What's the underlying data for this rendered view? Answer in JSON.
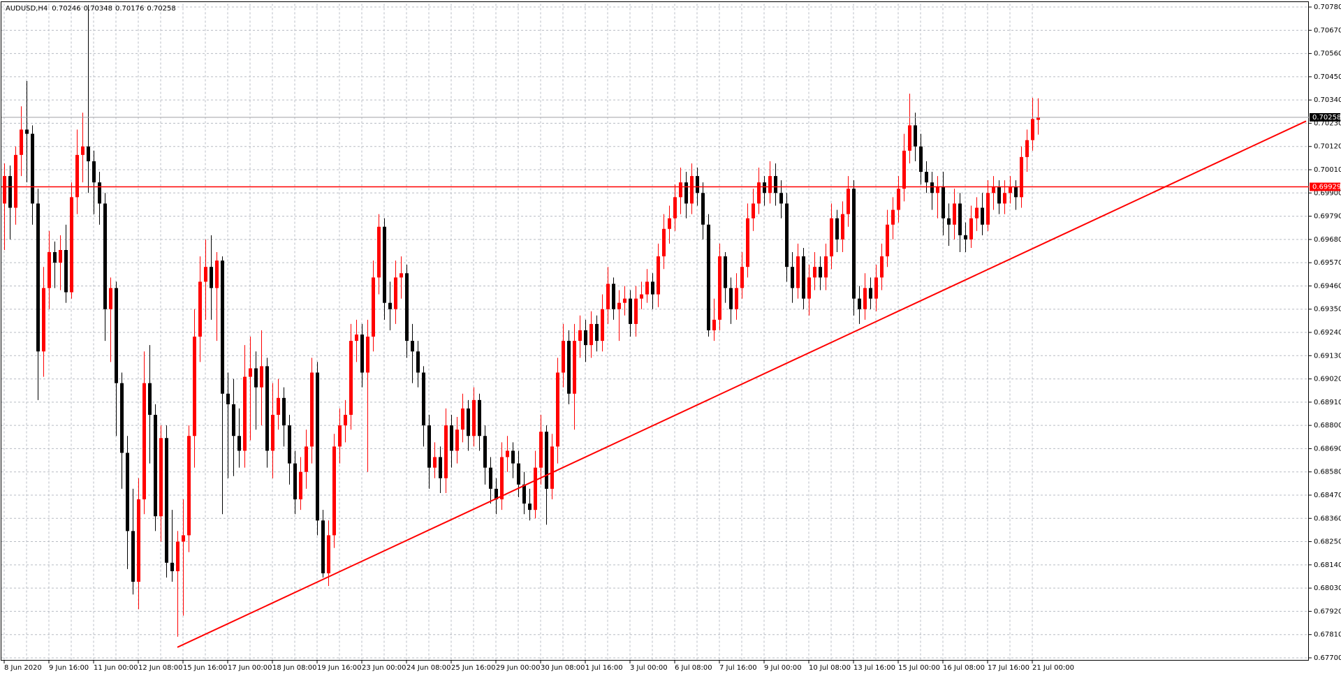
{
  "chart_data": {
    "type": "candlestick",
    "title": "AUDUSD,H4",
    "up_color": "#ff0000",
    "down_color": "#000000",
    "grid": true,
    "ylim": [
      0.6769,
      0.70795
    ],
    "yticks": [
      {
        "value": 0.677,
        "label": "0.67700"
      },
      {
        "value": 0.6781,
        "label": "0.67810"
      },
      {
        "value": 0.6792,
        "label": "0.67920"
      },
      {
        "value": 0.6803,
        "label": "0.68030"
      },
      {
        "value": 0.6814,
        "label": "0.68140"
      },
      {
        "value": 0.6825,
        "label": "0.68250"
      },
      {
        "value": 0.6836,
        "label": "0.68360"
      },
      {
        "value": 0.6847,
        "label": "0.68470"
      },
      {
        "value": 0.6858,
        "label": "0.68580"
      },
      {
        "value": 0.6869,
        "label": "0.68690"
      },
      {
        "value": 0.688,
        "label": "0.68800"
      },
      {
        "value": 0.6891,
        "label": "0.68910"
      },
      {
        "value": 0.6902,
        "label": "0.69020"
      },
      {
        "value": 0.6913,
        "label": "0.69130"
      },
      {
        "value": 0.6924,
        "label": "0.69240"
      },
      {
        "value": 0.6935,
        "label": "0.69350"
      },
      {
        "value": 0.6946,
        "label": "0.69460"
      },
      {
        "value": 0.6957,
        "label": "0.69570"
      },
      {
        "value": 0.6968,
        "label": "0.69680"
      },
      {
        "value": 0.6979,
        "label": "0.69790"
      },
      {
        "value": 0.699,
        "label": "0.69900"
      },
      {
        "value": 0.7001,
        "label": "0.70010"
      },
      {
        "value": 0.7012,
        "label": "0.70120"
      },
      {
        "value": 0.7023,
        "label": "0.70230"
      },
      {
        "value": 0.7034,
        "label": "0.70340"
      },
      {
        "value": 0.7045,
        "label": "0.70450"
      },
      {
        "value": 0.7056,
        "label": "0.70560"
      },
      {
        "value": 0.7067,
        "label": "0.70670"
      },
      {
        "value": 0.7078,
        "label": "0.70780"
      }
    ],
    "categories": [
      "8 Jun 2020",
      null,
      null,
      null,
      null,
      null,
      null,
      null,
      "9 Jun 16:00",
      null,
      null,
      null,
      null,
      null,
      null,
      null,
      "11 Jun 00:00",
      null,
      null,
      null,
      null,
      null,
      null,
      null,
      "12 Jun 08:00",
      null,
      null,
      null,
      null,
      null,
      null,
      null,
      "15 Jun 16:00",
      null,
      null,
      null,
      null,
      null,
      null,
      null,
      "17 Jun 00:00",
      null,
      null,
      null,
      null,
      null,
      null,
      null,
      "18 Jun 08:00",
      null,
      null,
      null,
      null,
      null,
      null,
      null,
      "19 Jun 16:00",
      null,
      null,
      null,
      null,
      null,
      null,
      null,
      "23 Jun 00:00",
      null,
      null,
      null,
      null,
      null,
      null,
      null,
      "24 Jun 08:00",
      null,
      null,
      null,
      null,
      null,
      null,
      null,
      "25 Jun 16:00",
      null,
      null,
      null,
      null,
      null,
      null,
      null,
      "29 Jun 00:00",
      null,
      null,
      null,
      null,
      null,
      null,
      null,
      "30 Jun 08:00",
      null,
      null,
      null,
      null,
      null,
      null,
      null,
      "1 Jul 16:00",
      null,
      null,
      null,
      null,
      null,
      null,
      null,
      "3 Jul 00:00",
      null,
      null,
      null,
      null,
      null,
      null,
      null,
      "6 Jul 08:00",
      null,
      null,
      null,
      null,
      null,
      null,
      null,
      "7 Jul 16:00",
      null,
      null,
      null,
      null,
      null,
      null,
      null,
      "9 Jul 00:00",
      null,
      null,
      null,
      null,
      null,
      null,
      null,
      "10 Jul 08:00",
      null,
      null,
      null,
      null,
      null,
      null,
      null,
      "13 Jul 16:00",
      null,
      null,
      null,
      null,
      null,
      null,
      null,
      "15 Jul 00:00",
      null,
      null,
      null,
      null,
      null,
      null,
      null,
      "16 Jul 08:00",
      null,
      null,
      null,
      null,
      null,
      null,
      null,
      "17 Jul 16:00",
      null,
      null,
      null,
      null,
      null,
      null,
      null,
      "21 Jul 00:00",
      null
    ],
    "open": [
      0.6985,
      0.6998,
      0.6983,
      0.7008,
      0.702,
      0.7018,
      0.6985,
      0.6915,
      0.6945,
      0.6962,
      0.6957,
      0.6963,
      0.6943,
      0.6988,
      0.7008,
      0.7012,
      0.7005,
      0.6995,
      0.6985,
      0.6935,
      0.6945,
      0.69,
      0.6867,
      0.683,
      0.6806,
      0.6845,
      0.69,
      0.6885,
      0.6837,
      0.6874,
      0.6815,
      0.6811,
      0.6825,
      0.6828,
      0.6875,
      0.6922,
      0.6948,
      0.6955,
      0.6945,
      0.6958,
      0.6895,
      0.689,
      0.6875,
      0.6868,
      0.6903,
      0.6907,
      0.6898,
      0.6908,
      0.6868,
      0.6885,
      0.6893,
      0.688,
      0.6862,
      0.6845,
      0.6858,
      0.687,
      0.6905,
      0.6835,
      0.681,
      0.6828,
      0.687,
      0.688,
      0.6885,
      0.692,
      0.6923,
      0.6905,
      0.6922,
      0.695,
      0.6974,
      0.6938,
      0.6935,
      0.695,
      0.6952,
      0.692,
      0.6915,
      0.6905,
      0.688,
      0.686,
      0.6865,
      0.6855,
      0.688,
      0.6868,
      0.6878,
      0.6888,
      0.6875,
      0.6892,
      0.6875,
      0.686,
      0.685,
      0.6845,
      0.6865,
      0.6868,
      0.6862,
      0.6852,
      0.6843,
      0.684,
      0.686,
      0.6877,
      0.685,
      0.687,
      0.6905,
      0.692,
      0.6895,
      0.692,
      0.6925,
      0.6918,
      0.6928,
      0.692,
      0.6935,
      0.6947,
      0.6935,
      0.6938,
      0.694,
      0.6928,
      0.694,
      0.6942,
      0.6948,
      0.6942,
      0.696,
      0.6973,
      0.6978,
      0.6988,
      0.6995,
      0.6985,
      0.6998,
      0.699,
      0.6975,
      0.6925,
      0.693,
      0.696,
      0.6945,
      0.6935,
      0.6945,
      0.6955,
      0.6978,
      0.6985,
      0.6995,
      0.699,
      0.6998,
      0.699,
      0.6985,
      0.6955,
      0.6945,
      0.696,
      0.694,
      0.695,
      0.6955,
      0.695,
      0.696,
      0.6978,
      0.6968,
      0.698,
      0.6992,
      0.694,
      0.6935,
      0.6945,
      0.694,
      0.695,
      0.696,
      0.6975,
      0.6982,
      0.6992,
      0.701,
      0.7022,
      0.7012,
      0.7,
      0.6995,
      0.699,
      0.6993,
      0.6978,
      0.6975,
      0.6985,
      0.697,
      0.6968,
      0.6978,
      0.6983,
      0.6975,
      0.699,
      0.6993,
      0.6985,
      0.699,
      0.6993,
      0.6988,
      0.7007,
      0.7015,
      0.70246
    ],
    "high": [
      0.7004,
      0.7003,
      0.7012,
      0.7031,
      0.7043,
      0.7022,
      0.6992,
      0.6955,
      0.6972,
      0.6967,
      0.697,
      0.6975,
      0.6995,
      0.702,
      0.7028,
      0.7079,
      0.701,
      0.7,
      0.699,
      0.695,
      0.6948,
      0.6905,
      0.6875,
      0.685,
      0.6855,
      0.6915,
      0.6918,
      0.689,
      0.688,
      0.688,
      0.684,
      0.683,
      0.6845,
      0.688,
      0.6935,
      0.696,
      0.6968,
      0.697,
      0.6962,
      0.696,
      0.6905,
      0.6902,
      0.6888,
      0.6918,
      0.6922,
      0.6915,
      0.6925,
      0.6912,
      0.69,
      0.6902,
      0.6898,
      0.6885,
      0.6868,
      0.6865,
      0.6878,
      0.6912,
      0.691,
      0.684,
      0.6835,
      0.6876,
      0.6888,
      0.6892,
      0.6928,
      0.693,
      0.6928,
      0.693,
      0.6958,
      0.698,
      0.6978,
      0.6948,
      0.6958,
      0.696,
      0.6956,
      0.6928,
      0.692,
      0.6908,
      0.6885,
      0.6872,
      0.687,
      0.6888,
      0.6885,
      0.6884,
      0.6895,
      0.6892,
      0.6898,
      0.6895,
      0.688,
      0.6865,
      0.6855,
      0.6872,
      0.6875,
      0.6872,
      0.6868,
      0.6858,
      0.685,
      0.6868,
      0.6885,
      0.688,
      0.6876,
      0.6912,
      0.6928,
      0.6925,
      0.6928,
      0.6932,
      0.693,
      0.6934,
      0.6932,
      0.6942,
      0.6955,
      0.695,
      0.6944,
      0.6946,
      0.6944,
      0.6946,
      0.6948,
      0.6954,
      0.6952,
      0.6966,
      0.698,
      0.6984,
      0.6994,
      0.7002,
      0.7,
      0.7004,
      0.7002,
      0.6995,
      0.698,
      0.694,
      0.6966,
      0.6962,
      0.695,
      0.6952,
      0.6962,
      0.6985,
      0.6992,
      0.7002,
      0.6998,
      0.7005,
      0.7004,
      0.6996,
      0.699,
      0.6962,
      0.6966,
      0.6964,
      0.6956,
      0.6962,
      0.696,
      0.6966,
      0.6985,
      0.6982,
      0.6986,
      0.6998,
      0.6996,
      0.6946,
      0.6952,
      0.695,
      0.6956,
      0.6966,
      0.6982,
      0.6988,
      0.6998,
      0.7018,
      0.7037,
      0.7028,
      0.7018,
      0.7005,
      0.7,
      0.6998,
      0.7,
      0.6985,
      0.6992,
      0.699,
      0.6976,
      0.6984,
      0.6988,
      0.699,
      0.6996,
      0.6998,
      0.6996,
      0.6996,
      0.6998,
      0.6996,
      0.7012,
      0.702,
      0.7035,
      0.70348
    ],
    "low": [
      0.6963,
      0.6968,
      0.6975,
      0.6998,
      0.6995,
      0.6975,
      0.6892,
      0.6903,
      0.6935,
      0.6945,
      0.6944,
      0.6938,
      0.694,
      0.698,
      0.6995,
      0.699,
      0.698,
      0.6975,
      0.692,
      0.691,
      0.6875,
      0.685,
      0.6812,
      0.68,
      0.6793,
      0.6838,
      0.6862,
      0.683,
      0.6825,
      0.6808,
      0.6806,
      0.678,
      0.679,
      0.682,
      0.686,
      0.691,
      0.693,
      0.693,
      0.692,
      0.6838,
      0.6855,
      0.6856,
      0.686,
      0.686,
      0.6873,
      0.6878,
      0.688,
      0.686,
      0.6855,
      0.6878,
      0.687,
      0.6852,
      0.6838,
      0.684,
      0.685,
      0.6862,
      0.6828,
      0.6808,
      0.6804,
      0.6822,
      0.6862,
      0.6872,
      0.6878,
      0.691,
      0.6898,
      0.6858,
      0.6915,
      0.6942,
      0.693,
      0.6925,
      0.6928,
      0.694,
      0.6912,
      0.69,
      0.6898,
      0.687,
      0.685,
      0.6855,
      0.6848,
      0.6848,
      0.686,
      0.6862,
      0.6872,
      0.6868,
      0.687,
      0.6868,
      0.6852,
      0.6843,
      0.6838,
      0.684,
      0.6858,
      0.6855,
      0.6846,
      0.6838,
      0.6835,
      0.6836,
      0.6852,
      0.6833,
      0.6845,
      0.6862,
      0.6898,
      0.689,
      0.6878,
      0.6912,
      0.691,
      0.6912,
      0.6915,
      0.6915,
      0.6928,
      0.693,
      0.692,
      0.6932,
      0.6922,
      0.6922,
      0.6935,
      0.6938,
      0.6935,
      0.6936,
      0.6954,
      0.6966,
      0.6972,
      0.698,
      0.6978,
      0.698,
      0.6984,
      0.6968,
      0.6922,
      0.692,
      0.6925,
      0.6938,
      0.6928,
      0.693,
      0.694,
      0.695,
      0.6972,
      0.698,
      0.6984,
      0.6985,
      0.6984,
      0.6978,
      0.6948,
      0.6938,
      0.694,
      0.6935,
      0.6932,
      0.6944,
      0.6944,
      0.6944,
      0.6954,
      0.6962,
      0.6962,
      0.6974,
      0.6932,
      0.6928,
      0.693,
      0.6935,
      0.6934,
      0.6944,
      0.6955,
      0.6968,
      0.6976,
      0.6986,
      0.7004,
      0.7005,
      0.6994,
      0.699,
      0.6982,
      0.6978,
      0.697,
      0.6965,
      0.6968,
      0.6962,
      0.6962,
      0.6964,
      0.6972,
      0.697,
      0.6972,
      0.6982,
      0.698,
      0.698,
      0.6985,
      0.6982,
      0.6983,
      0.7,
      0.701,
      0.70176
    ],
    "close": [
      0.6998,
      0.6983,
      0.7008,
      0.702,
      0.7018,
      0.6985,
      0.6915,
      0.6945,
      0.6962,
      0.6957,
      0.6963,
      0.6943,
      0.6988,
      0.7008,
      0.7012,
      0.7005,
      0.6995,
      0.6985,
      0.6935,
      0.6945,
      0.69,
      0.6867,
      0.683,
      0.6806,
      0.6845,
      0.69,
      0.6885,
      0.6837,
      0.6874,
      0.6815,
      0.6811,
      0.6825,
      0.6828,
      0.6875,
      0.6922,
      0.6948,
      0.6955,
      0.6945,
      0.6958,
      0.6895,
      0.689,
      0.6875,
      0.6868,
      0.6903,
      0.6907,
      0.6898,
      0.6908,
      0.6868,
      0.6885,
      0.6893,
      0.688,
      0.6862,
      0.6845,
      0.6858,
      0.687,
      0.6905,
      0.6835,
      0.681,
      0.6828,
      0.687,
      0.688,
      0.6885,
      0.692,
      0.6923,
      0.6905,
      0.6922,
      0.695,
      0.6974,
      0.6938,
      0.6935,
      0.695,
      0.6952,
      0.692,
      0.6915,
      0.6905,
      0.688,
      0.686,
      0.6865,
      0.6855,
      0.688,
      0.6868,
      0.6878,
      0.6888,
      0.6875,
      0.6892,
      0.6875,
      0.686,
      0.685,
      0.6845,
      0.6865,
      0.6868,
      0.6862,
      0.6852,
      0.6843,
      0.684,
      0.686,
      0.6877,
      0.685,
      0.687,
      0.6905,
      0.692,
      0.6895,
      0.692,
      0.6925,
      0.6918,
      0.6928,
      0.692,
      0.6935,
      0.6947,
      0.6935,
      0.6938,
      0.694,
      0.6928,
      0.694,
      0.6942,
      0.6948,
      0.6942,
      0.696,
      0.6973,
      0.6978,
      0.6988,
      0.6995,
      0.6985,
      0.6998,
      0.699,
      0.6975,
      0.6925,
      0.693,
      0.696,
      0.6945,
      0.6935,
      0.6945,
      0.6955,
      0.6978,
      0.6985,
      0.6995,
      0.699,
      0.6998,
      0.699,
      0.6985,
      0.6955,
      0.6945,
      0.696,
      0.694,
      0.695,
      0.6955,
      0.695,
      0.696,
      0.6978,
      0.6968,
      0.698,
      0.6992,
      0.694,
      0.6935,
      0.6945,
      0.694,
      0.695,
      0.696,
      0.6975,
      0.6982,
      0.6992,
      0.701,
      0.7022,
      0.7012,
      0.7,
      0.6995,
      0.699,
      0.6993,
      0.6978,
      0.6975,
      0.6985,
      0.697,
      0.6968,
      0.6978,
      0.6983,
      0.6975,
      0.699,
      0.6993,
      0.6985,
      0.699,
      0.6993,
      0.6988,
      0.7007,
      0.7015,
      0.7025,
      0.70258
    ],
    "last_price_line_color": "#a0a0a4",
    "hlines": [
      {
        "value": 0.69929,
        "color": "#ff0000"
      }
    ],
    "trendline": {
      "x": [
        31,
        233
      ],
      "y": [
        0.6775,
        0.7024
      ],
      "color": "#ff0000"
    }
  }
}
